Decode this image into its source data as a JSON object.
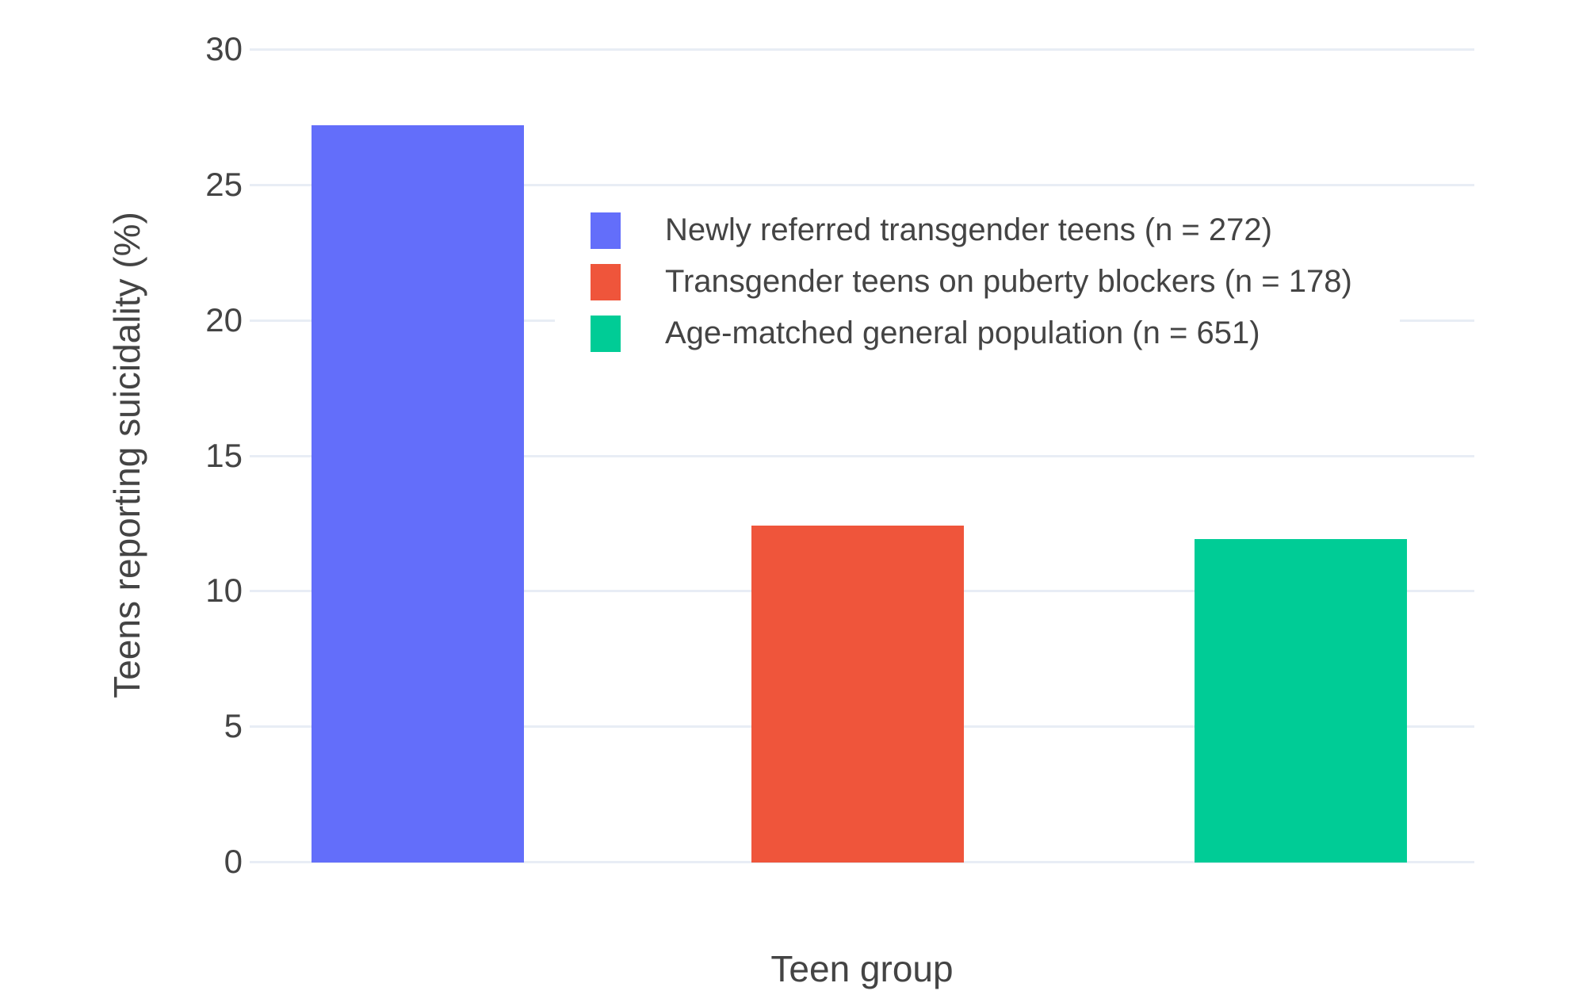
{
  "chart_data": {
    "type": "bar",
    "title": "",
    "xlabel": "Teen group",
    "ylabel": "Teens reporting suicidality (%)",
    "ylim": [
      0,
      30
    ],
    "yticks": [
      0,
      5,
      10,
      15,
      20,
      25,
      30
    ],
    "grid": true,
    "legend_position": "inside-top-center",
    "categories": [
      "Newly referred transgender teens (n = 272)",
      "Transgender teens on puberty blockers (n = 178)",
      "Age-matched general population (n = 651)"
    ],
    "bars": [
      {
        "label": "Newly referred transgender teens (n = 272)",
        "value": 27.2,
        "color": "#636EFA"
      },
      {
        "label": "Transgender teens on puberty blockers (n = 178)",
        "value": 12.4,
        "color": "#EF553B"
      },
      {
        "label": "Age-matched general population (n = 651)",
        "value": 11.9,
        "color": "#00CC96"
      }
    ],
    "colors": {
      "background": "#FFFFFF",
      "gridline": "#E8EDF5",
      "text": "#444444"
    }
  }
}
